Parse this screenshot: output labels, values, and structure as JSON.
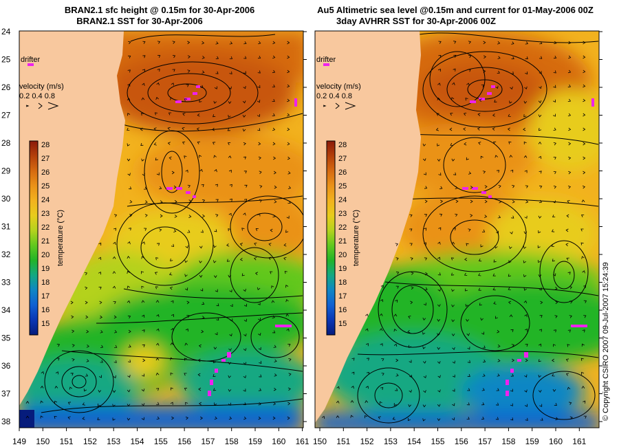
{
  "panels": [
    {
      "title_line1": "BRAN2.1 sfc height @ 0.15m for 30-Apr-2006",
      "title_line2": "BRAN2.1 SST for 30-Apr-2006"
    },
    {
      "title_line1": "Au5 Altimetric sea level  @0.15m and current for 01-May-2006 00Z",
      "title_line2": "3day AVHRR SST for 30-Apr-2006 00Z"
    }
  ],
  "map": {
    "lat_labels": [
      "24",
      "25",
      "26",
      "27",
      "28",
      "29",
      "30",
      "31",
      "32",
      "33",
      "34",
      "35",
      "36",
      "37",
      "38"
    ],
    "lon_labels_left": [
      "149",
      "150",
      "151",
      "152",
      "153",
      "154",
      "155",
      "156",
      "157",
      "158",
      "159",
      "160",
      "161"
    ],
    "lon_labels_right": [
      "150",
      "151",
      "152",
      "153",
      "154",
      "155",
      "156",
      "157",
      "158",
      "159",
      "160",
      "161"
    ],
    "drifter_label": "drifter",
    "velocity_label": "velocity (m/s)",
    "velocity_scale": "0.2 0.4 0.8",
    "colorbar": {
      "ticks": [
        "28",
        "27",
        "26",
        "25",
        "24",
        "23",
        "22",
        "21",
        "20",
        "19",
        "18",
        "17",
        "16",
        "15"
      ],
      "label": "temperature (°C)",
      "colors": [
        "#8b1a0a",
        "#b4400a",
        "#d66a10",
        "#ea9218",
        "#f2b21e",
        "#e8cc1c",
        "#b4d21e",
        "#62c81e",
        "#22b428",
        "#14a882",
        "#1086c4",
        "#1060d2",
        "#0a36b4",
        "#061c7c"
      ]
    },
    "coast_color": "#f8c89e",
    "drifter_color": "#ee22ee",
    "copyright": "© Copyright CSIRO 2007   09-Jul-2007 15:24:39"
  }
}
